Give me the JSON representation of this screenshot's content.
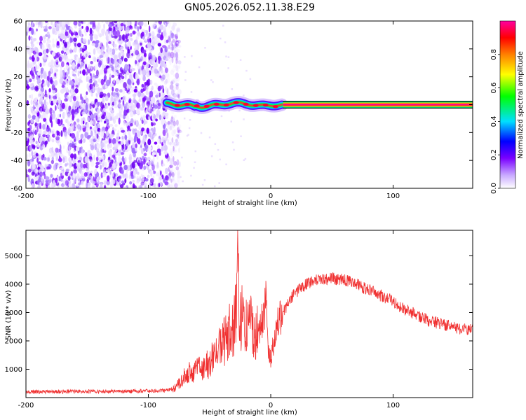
{
  "title": "GN05.2026.052.11.38.E29",
  "chart_data": [
    {
      "type": "heatmap",
      "name": "spectrogram",
      "xlabel": "Height of straight line (km)",
      "ylabel": "Frequency (Hz)",
      "xlim": [
        -200,
        165
      ],
      "ylim": [
        -60,
        60
      ],
      "xticks": [
        "-200",
        "-100",
        "0",
        "100"
      ],
      "xtick_values": [
        -200,
        -100,
        0,
        100
      ],
      "yticks": [
        "-60",
        "-40",
        "-20",
        "0",
        "20",
        "40",
        "60"
      ],
      "ytick_values": [
        -60,
        -40,
        -20,
        0,
        20,
        40,
        60
      ],
      "noise_region_x": [
        -200,
        -80
      ],
      "signal_start_x": -85,
      "signal_steady_from_x": 10,
      "signal_frequency_hz": 0,
      "colorbar": {
        "label": "Normalized spectral amplitude",
        "range": [
          0.0,
          1.0
        ],
        "ticks": [
          "0.0",
          "0.2",
          "0.4",
          "0.6",
          "0.8"
        ],
        "tick_values": [
          0.0,
          0.2,
          0.4,
          0.6,
          0.8
        ]
      }
    },
    {
      "type": "line",
      "name": "snr",
      "xlabel": "Height of straight line (km)",
      "ylabel": "SNR (10 * v/v)",
      "xlim": [
        -200,
        165
      ],
      "ylim": [
        0,
        5900
      ],
      "xticks": [
        "-200",
        "-100",
        "0",
        "100"
      ],
      "xtick_values": [
        -200,
        -100,
        0,
        100
      ],
      "yticks": [
        "1000",
        "2000",
        "3000",
        "4000",
        "5000"
      ],
      "ytick_values": [
        1000,
        2000,
        3000,
        4000,
        5000
      ],
      "color": "#f03030",
      "series": [
        {
          "name": "SNR",
          "x": [
            -200,
            -120,
            -85,
            -80,
            -75,
            -70,
            -60,
            -50,
            -45,
            -40,
            -35,
            -30,
            -28,
            -27,
            -26,
            -22,
            -15,
            -10,
            -7,
            -4,
            -2,
            0,
            5,
            10,
            15,
            20,
            25,
            30,
            35,
            40,
            50,
            60,
            70,
            80,
            90,
            100,
            110,
            120,
            130,
            140,
            150,
            160,
            165
          ],
          "y": [
            200,
            220,
            250,
            300,
            500,
            800,
            1000,
            1200,
            1600,
            1800,
            2200,
            2600,
            3000,
            5900,
            3000,
            2700,
            2600,
            2300,
            2700,
            3400,
            1700,
            1400,
            2500,
            3000,
            3400,
            3700,
            3900,
            4000,
            4100,
            4150,
            4200,
            4150,
            4000,
            3800,
            3600,
            3400,
            3100,
            2900,
            2700,
            2600,
            2450,
            2400,
            2500
          ]
        }
      ]
    }
  ]
}
